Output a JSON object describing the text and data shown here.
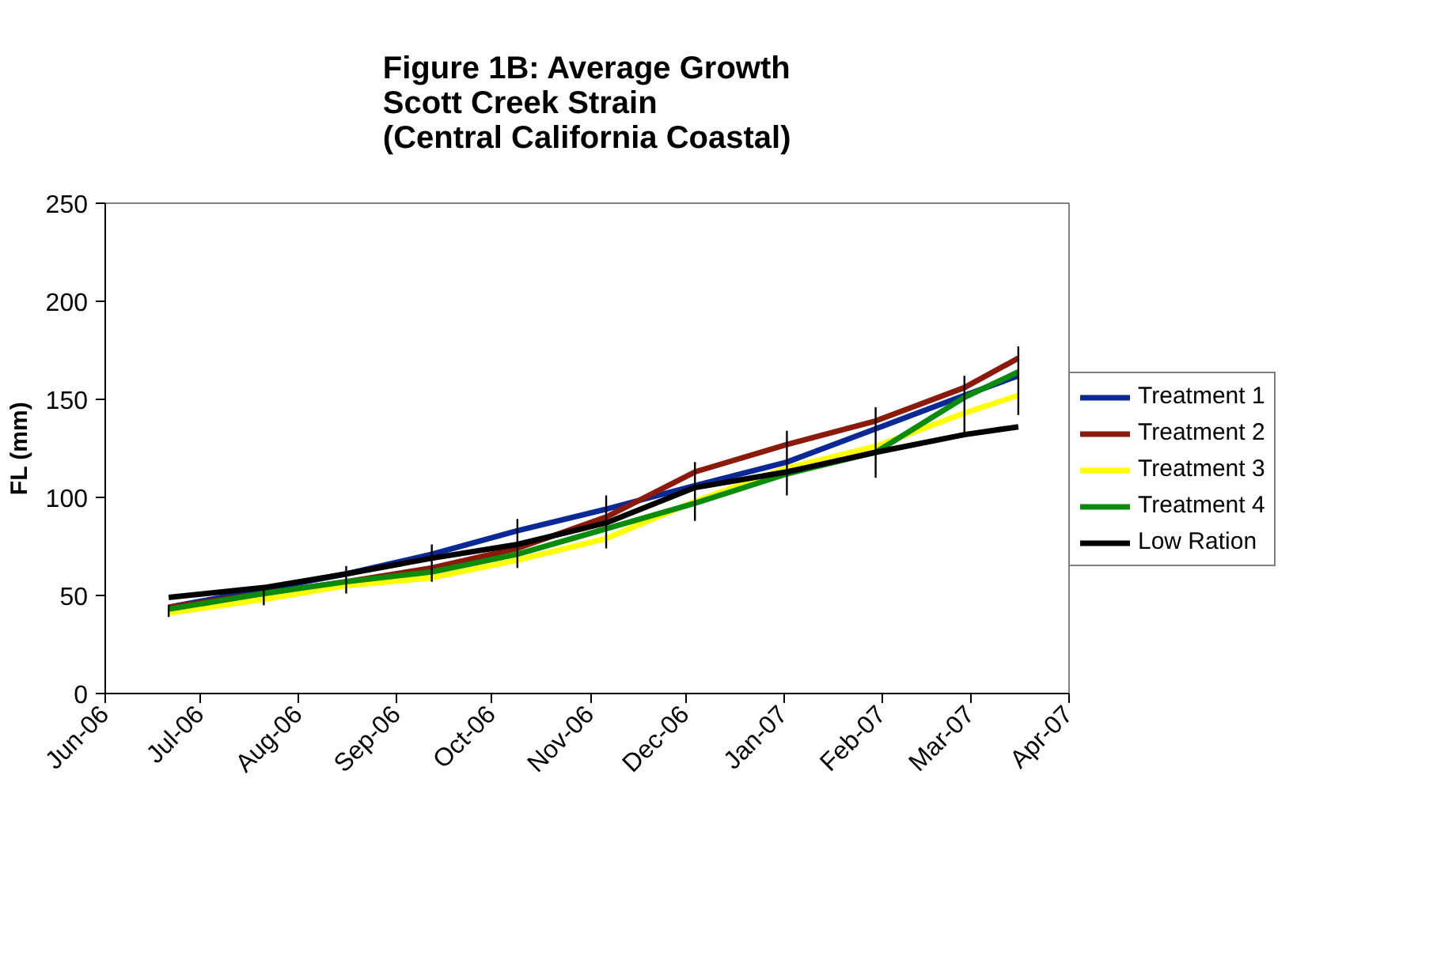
{
  "chart_data": {
    "type": "line",
    "title": "Figure 1B: Average Growth\nScott Creek Strain\n(Central California Coastal)",
    "ylabel": "FL (mm)",
    "x": [
      "2006-06-21",
      "2006-07-21",
      "2006-08-16",
      "2006-09-12",
      "2006-10-09",
      "2006-11-06",
      "2006-12-04",
      "2007-01-02",
      "2007-01-30",
      "2007-02-27",
      "2007-03-16"
    ],
    "series": [
      {
        "name": "Treatment 1",
        "color": "#0a2896",
        "values": [
          44,
          53,
          61,
          71,
          83,
          94,
          106,
          118,
          135,
          152,
          162
        ]
      },
      {
        "name": "Treatment 2",
        "color": "#8c1a0a",
        "values": [
          44,
          51,
          57,
          64,
          74,
          90,
          113,
          127,
          139,
          156,
          171
        ]
      },
      {
        "name": "Treatment 3",
        "color": "#ffff00",
        "values": [
          41,
          48,
          55,
          59,
          68,
          79,
          98,
          115,
          126,
          143,
          152
        ]
      },
      {
        "name": "Treatment 4",
        "color": "#0a8c0a",
        "values": [
          43,
          51,
          57,
          62,
          71,
          84,
          97,
          112,
          123,
          151,
          164
        ],
        "errors": [
          [
            39,
            45
          ],
          [
            45,
            55
          ],
          [
            51,
            65
          ],
          [
            57,
            76
          ],
          [
            64,
            89
          ],
          [
            74,
            101
          ],
          [
            88,
            118
          ],
          [
            101,
            134
          ],
          [
            110,
            146
          ],
          [
            132,
            162
          ],
          [
            142,
            177
          ]
        ]
      },
      {
        "name": "Low Ration",
        "color": "#000000",
        "values": [
          49,
          54,
          61,
          69,
          76,
          87,
          105,
          113,
          123,
          132,
          136
        ]
      }
    ],
    "xlim": [
      "2006-06-01",
      "2007-04-01"
    ],
    "xticks": [
      {
        "value": "2006-06-01",
        "label": "Jun-06"
      },
      {
        "value": "2006-07-01",
        "label": "Jul-06"
      },
      {
        "value": "2006-08-01",
        "label": "Aug-06"
      },
      {
        "value": "2006-09-01",
        "label": "Sep-06"
      },
      {
        "value": "2006-10-01",
        "label": "Oct-06"
      },
      {
        "value": "2006-11-01",
        "label": "Nov-06"
      },
      {
        "value": "2006-12-01",
        "label": "Dec-06"
      },
      {
        "value": "2007-01-01",
        "label": "Jan-07"
      },
      {
        "value": "2007-02-01",
        "label": "Feb-07"
      },
      {
        "value": "2007-03-01",
        "label": "Mar-07"
      },
      {
        "value": "2007-04-01",
        "label": "Apr-07"
      }
    ],
    "ylim": [
      0,
      250
    ],
    "yticks": [
      0,
      50,
      100,
      150,
      200,
      250
    ],
    "grid": false,
    "legend": "right",
    "marker": "none",
    "line_style": "solid"
  }
}
